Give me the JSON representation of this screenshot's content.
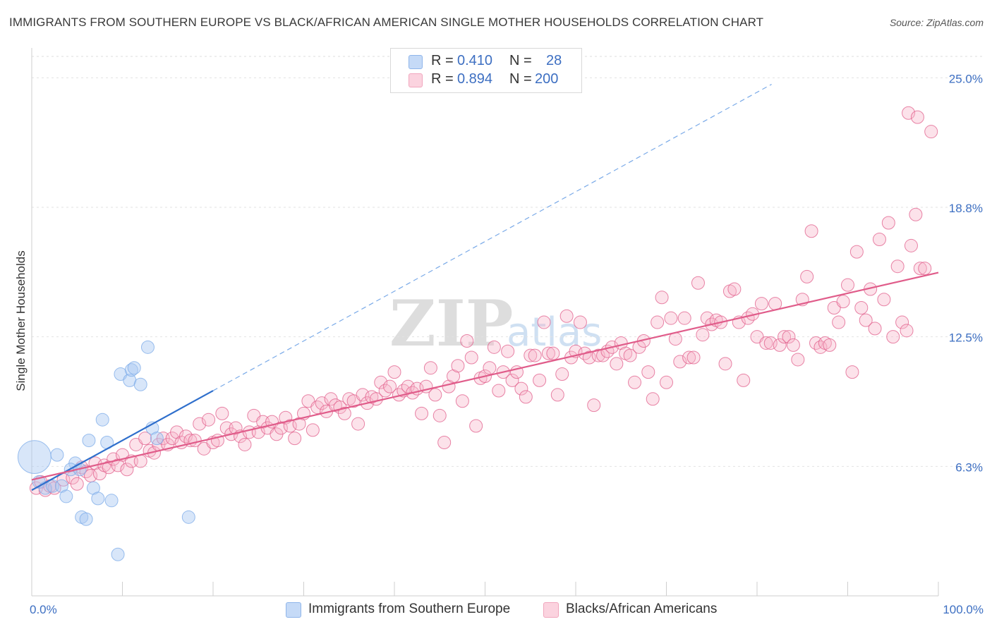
{
  "title": "IMMIGRANTS FROM SOUTHERN EUROPE VS BLACK/AFRICAN AMERICAN SINGLE MOTHER HOUSEHOLDS CORRELATION CHART",
  "source": "Source: ZipAtlas.com",
  "watermark": {
    "zip": "ZIP",
    "atlas": "atlas"
  },
  "stats": {
    "r_label": "R =",
    "n_label": "N =",
    "rows": [
      {
        "r": "0.410",
        "n": "28",
        "color": "#7aaae8"
      },
      {
        "r": "0.894",
        "n": "200",
        "color": "#f19bb6"
      }
    ]
  },
  "legend": {
    "items": [
      {
        "label": "Immigrants from Southern Europe",
        "fill": "#c5daf7",
        "stroke": "#8fb5ea"
      },
      {
        "label": "Blacks/African Americans",
        "fill": "#fbd3df",
        "stroke": "#f1a6bd"
      }
    ]
  },
  "chart_data": {
    "type": "scatter",
    "title": "IMMIGRANTS FROM SOUTHERN EUROPE VS BLACK/AFRICAN AMERICAN SINGLE MOTHER HOUSEHOLDS CORRELATION CHART",
    "xlabel": "",
    "ylabel": "Single Mother Households",
    "xlim": [
      0,
      100
    ],
    "ylim": [
      0,
      26.2
    ],
    "x_tick_labels": [
      {
        "value": 0,
        "label": "0.0%"
      },
      {
        "value": 100,
        "label": "100.0%"
      }
    ],
    "y_ticks": [
      {
        "value": 6.25,
        "label": "6.3%"
      },
      {
        "value": 12.5,
        "label": "12.5%"
      },
      {
        "value": 18.75,
        "label": "18.8%"
      },
      {
        "value": 25.0,
        "label": "25.0%"
      }
    ],
    "x_minor_ticks": [
      0,
      10,
      20,
      30,
      40,
      50,
      60,
      70,
      80,
      90,
      100
    ],
    "series": [
      {
        "name": "Immigrants from Southern Europe",
        "color": "#7aaae8",
        "fill": "#a8c8f2",
        "R": 0.41,
        "N": 28,
        "trend": {
          "x0": 0,
          "y0": 5.1,
          "x1": 20,
          "y1": 9.9,
          "dashed_to_x": 81.6
        },
        "points": [
          [
            0.3,
            6.7,
            2.6
          ],
          [
            2.8,
            6.8,
            1
          ],
          [
            4.8,
            6.4,
            1
          ],
          [
            4.3,
            6.1,
            1
          ],
          [
            6.3,
            7.5,
            1
          ],
          [
            7.8,
            8.5,
            1
          ],
          [
            8.3,
            7.4,
            1
          ],
          [
            9.8,
            10.7,
            1
          ],
          [
            10.8,
            10.4,
            1
          ],
          [
            11.0,
            10.9,
            1
          ],
          [
            11.3,
            11.0,
            1
          ],
          [
            12.0,
            10.2,
            1
          ],
          [
            12.8,
            12.0,
            1
          ],
          [
            13.3,
            8.1,
            1
          ],
          [
            13.8,
            7.6,
            1
          ],
          [
            0.8,
            5.5,
            1
          ],
          [
            1.5,
            5.2,
            1
          ],
          [
            2.3,
            5.3,
            1
          ],
          [
            3.3,
            5.3,
            1
          ],
          [
            3.8,
            4.8,
            1
          ],
          [
            5.3,
            6.1,
            1
          ],
          [
            6.8,
            5.2,
            1
          ],
          [
            7.3,
            4.7,
            1
          ],
          [
            8.8,
            4.6,
            1
          ],
          [
            5.5,
            3.8,
            1
          ],
          [
            6.0,
            3.7,
            1
          ],
          [
            17.3,
            3.8,
            1
          ],
          [
            9.5,
            2.0,
            1
          ]
        ]
      },
      {
        "name": "Blacks/African Americans",
        "color": "#e05c8a",
        "fill": "#f7b6ca",
        "R": 0.894,
        "N": 200,
        "trend": {
          "x0": 0,
          "y0": 5.6,
          "x1": 100,
          "y1": 15.6
        },
        "points": [
          [
            0.5,
            5.2,
            1
          ],
          [
            1.0,
            5.5,
            1
          ],
          [
            1.5,
            5.1,
            1
          ],
          [
            2.0,
            5.3,
            1
          ],
          [
            2.5,
            5.2,
            1
          ],
          [
            3.5,
            5.6,
            1
          ],
          [
            4.5,
            5.7,
            1
          ],
          [
            5.0,
            5.4,
            1
          ],
          [
            5.5,
            6.2,
            1
          ],
          [
            6.0,
            6.0,
            1
          ],
          [
            6.5,
            5.8,
            1
          ],
          [
            7.0,
            6.4,
            1
          ],
          [
            7.5,
            5.9,
            1
          ],
          [
            8.0,
            6.3,
            1
          ],
          [
            8.5,
            6.2,
            1
          ],
          [
            9.0,
            6.6,
            1
          ],
          [
            9.5,
            6.3,
            1
          ],
          [
            10.0,
            6.8,
            1
          ],
          [
            10.5,
            6.1,
            1
          ],
          [
            11.0,
            6.5,
            1
          ],
          [
            11.5,
            7.3,
            1
          ],
          [
            12.0,
            6.5,
            1
          ],
          [
            12.5,
            7.6,
            1
          ],
          [
            13.0,
            7.0,
            1
          ],
          [
            13.5,
            6.9,
            1
          ],
          [
            14.0,
            7.3,
            1
          ],
          [
            14.5,
            7.6,
            1
          ],
          [
            15.0,
            7.3,
            1
          ],
          [
            15.5,
            7.6,
            1
          ],
          [
            16.0,
            7.9,
            1
          ],
          [
            16.5,
            7.4,
            1
          ],
          [
            17.0,
            7.7,
            1
          ],
          [
            17.5,
            7.5,
            1
          ],
          [
            18.0,
            7.5,
            1
          ],
          [
            18.5,
            8.3,
            1
          ],
          [
            19.0,
            7.1,
            1
          ],
          [
            19.5,
            8.5,
            1
          ],
          [
            20.0,
            7.4,
            1
          ],
          [
            20.5,
            7.5,
            1
          ],
          [
            21.0,
            8.8,
            1
          ],
          [
            21.5,
            8.1,
            1
          ],
          [
            22.0,
            7.8,
            1
          ],
          [
            22.5,
            8.1,
            1
          ],
          [
            23.0,
            7.7,
            1
          ],
          [
            23.5,
            7.3,
            1
          ],
          [
            24.0,
            7.9,
            1
          ],
          [
            24.5,
            8.7,
            1
          ],
          [
            25.0,
            7.9,
            1
          ],
          [
            25.5,
            8.4,
            1
          ],
          [
            26.0,
            8.1,
            1
          ],
          [
            26.5,
            8.4,
            1
          ],
          [
            27.0,
            7.8,
            1
          ],
          [
            27.5,
            8.1,
            1
          ],
          [
            28.0,
            8.6,
            1
          ],
          [
            28.5,
            8.2,
            1
          ],
          [
            29.0,
            7.6,
            1
          ],
          [
            29.5,
            8.3,
            1
          ],
          [
            30.0,
            8.8,
            1
          ],
          [
            30.5,
            9.4,
            1
          ],
          [
            31.0,
            8.0,
            1
          ],
          [
            31.5,
            9.1,
            1
          ],
          [
            32.0,
            9.3,
            1
          ],
          [
            32.5,
            8.9,
            1
          ],
          [
            33.0,
            9.5,
            1
          ],
          [
            33.5,
            9.2,
            1
          ],
          [
            34.0,
            9.1,
            1
          ],
          [
            34.5,
            8.8,
            1
          ],
          [
            35.0,
            9.5,
            1
          ],
          [
            35.5,
            9.4,
            1
          ],
          [
            36.0,
            8.3,
            1
          ],
          [
            36.5,
            9.7,
            1
          ],
          [
            37.0,
            9.3,
            1
          ],
          [
            37.5,
            9.6,
            1
          ],
          [
            38.0,
            9.5,
            1
          ],
          [
            38.5,
            10.3,
            1
          ],
          [
            39.0,
            9.9,
            1
          ],
          [
            39.5,
            10.1,
            1
          ],
          [
            40.0,
            10.8,
            1
          ],
          [
            40.5,
            9.7,
            1
          ],
          [
            41.0,
            9.9,
            1
          ],
          [
            41.5,
            10.1,
            1
          ],
          [
            42.0,
            9.8,
            1
          ],
          [
            42.5,
            10.0,
            1
          ],
          [
            43.0,
            8.8,
            1
          ],
          [
            43.5,
            10.1,
            1
          ],
          [
            44.0,
            11.0,
            1
          ],
          [
            44.5,
            9.7,
            1
          ],
          [
            45.0,
            8.7,
            1
          ],
          [
            45.5,
            7.4,
            1
          ],
          [
            46.0,
            10.1,
            1
          ],
          [
            46.5,
            10.6,
            1
          ],
          [
            47.0,
            11.1,
            1
          ],
          [
            47.5,
            9.4,
            1
          ],
          [
            48.0,
            12.3,
            1
          ],
          [
            48.5,
            11.5,
            1
          ],
          [
            49.0,
            8.2,
            1
          ],
          [
            49.5,
            10.5,
            1
          ],
          [
            50.0,
            10.6,
            1
          ],
          [
            50.5,
            11.0,
            1
          ],
          [
            51.0,
            12.0,
            1
          ],
          [
            51.5,
            9.9,
            1
          ],
          [
            52.0,
            10.8,
            1
          ],
          [
            52.5,
            11.8,
            1
          ],
          [
            53.0,
            10.4,
            1
          ],
          [
            53.5,
            10.8,
            1
          ],
          [
            54.0,
            10.0,
            1
          ],
          [
            54.5,
            9.6,
            1
          ],
          [
            55.0,
            11.6,
            1
          ],
          [
            55.5,
            11.6,
            1
          ],
          [
            56.0,
            10.4,
            1
          ],
          [
            56.5,
            13.2,
            1
          ],
          [
            57.0,
            11.7,
            1
          ],
          [
            57.5,
            11.7,
            1
          ],
          [
            58.0,
            9.7,
            1
          ],
          [
            58.5,
            10.7,
            1
          ],
          [
            59.0,
            13.5,
            1
          ],
          [
            59.5,
            11.5,
            1
          ],
          [
            60.0,
            11.8,
            1
          ],
          [
            60.5,
            13.2,
            1
          ],
          [
            61.0,
            11.7,
            1
          ],
          [
            61.5,
            11.5,
            1
          ],
          [
            62.0,
            9.2,
            1
          ],
          [
            62.5,
            11.6,
            1
          ],
          [
            63.0,
            11.6,
            1
          ],
          [
            63.5,
            11.8,
            1
          ],
          [
            64.0,
            12.0,
            1
          ],
          [
            64.5,
            11.2,
            1
          ],
          [
            65.0,
            12.2,
            1
          ],
          [
            65.5,
            11.7,
            1
          ],
          [
            66.0,
            11.6,
            1
          ],
          [
            66.5,
            10.3,
            1
          ],
          [
            67.0,
            12.0,
            1
          ],
          [
            67.5,
            12.3,
            1
          ],
          [
            68.0,
            10.8,
            1
          ],
          [
            68.5,
            9.5,
            1
          ],
          [
            69.0,
            13.2,
            1
          ],
          [
            69.5,
            14.4,
            1
          ],
          [
            70.0,
            10.3,
            1
          ],
          [
            70.5,
            13.4,
            1
          ],
          [
            71.0,
            12.4,
            1
          ],
          [
            71.5,
            11.3,
            1
          ],
          [
            72.0,
            13.4,
            1
          ],
          [
            72.5,
            11.5,
            1
          ],
          [
            73.0,
            11.5,
            1
          ],
          [
            73.5,
            15.1,
            1
          ],
          [
            74.0,
            12.6,
            1
          ],
          [
            74.5,
            13.4,
            1
          ],
          [
            75.0,
            13.1,
            1
          ],
          [
            75.5,
            13.3,
            1
          ],
          [
            76.0,
            13.2,
            1
          ],
          [
            76.5,
            11.2,
            1
          ],
          [
            77.0,
            14.7,
            1
          ],
          [
            77.5,
            14.8,
            1
          ],
          [
            78.0,
            13.2,
            1
          ],
          [
            78.5,
            10.4,
            1
          ],
          [
            79.0,
            13.4,
            1
          ],
          [
            79.5,
            13.6,
            1
          ],
          [
            80.0,
            12.5,
            1
          ],
          [
            80.5,
            14.1,
            1
          ],
          [
            81.0,
            12.2,
            1
          ],
          [
            81.5,
            12.2,
            1
          ],
          [
            82.0,
            14.1,
            1
          ],
          [
            82.5,
            12.1,
            1
          ],
          [
            83.0,
            12.5,
            1
          ],
          [
            83.5,
            12.5,
            1
          ],
          [
            84.0,
            12.1,
            1
          ],
          [
            84.5,
            11.4,
            1
          ],
          [
            85.0,
            14.3,
            1
          ],
          [
            85.5,
            15.4,
            1
          ],
          [
            86.0,
            17.6,
            1
          ],
          [
            86.5,
            12.2,
            1
          ],
          [
            87.0,
            12.0,
            1
          ],
          [
            87.5,
            12.2,
            1
          ],
          [
            88.0,
            12.1,
            1
          ],
          [
            88.5,
            13.9,
            1
          ],
          [
            89.0,
            13.2,
            1
          ],
          [
            89.5,
            14.2,
            1
          ],
          [
            90.0,
            15.0,
            1
          ],
          [
            90.5,
            10.8,
            1
          ],
          [
            91.0,
            16.6,
            1
          ],
          [
            91.5,
            13.9,
            1
          ],
          [
            92.0,
            13.3,
            1
          ],
          [
            92.5,
            14.8,
            1
          ],
          [
            93.0,
            12.9,
            1
          ],
          [
            93.5,
            17.2,
            1
          ],
          [
            94.0,
            14.3,
            1
          ],
          [
            94.5,
            18.0,
            1
          ],
          [
            95.0,
            12.5,
            1
          ],
          [
            95.5,
            15.9,
            1
          ],
          [
            96.0,
            13.2,
            1
          ],
          [
            96.5,
            12.8,
            1
          ],
          [
            97.0,
            16.9,
            1
          ],
          [
            97.5,
            18.4,
            1
          ],
          [
            98.0,
            15.8,
            1
          ],
          [
            98.5,
            15.8,
            1
          ],
          [
            96.7,
            23.3,
            1
          ],
          [
            97.7,
            23.1,
            1
          ],
          [
            99.2,
            22.4,
            1
          ]
        ]
      }
    ]
  }
}
